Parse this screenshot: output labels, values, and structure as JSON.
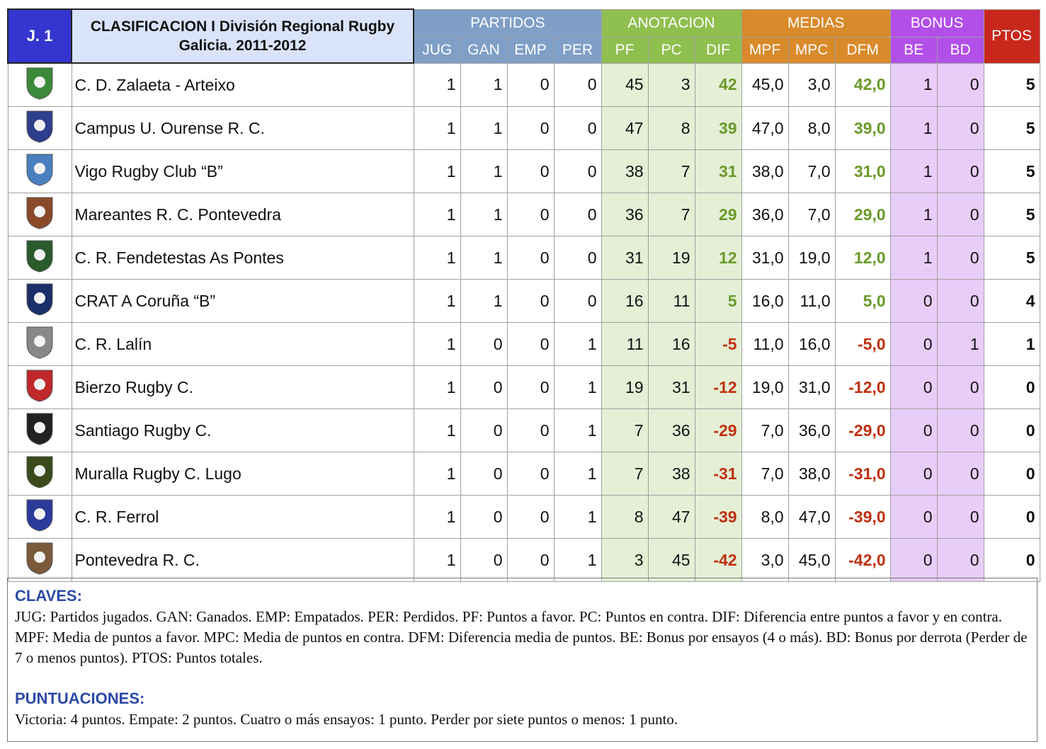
{
  "header": {
    "round": "J. 1",
    "title": "CLASIFICACION I División Regional Rugby Galicia. 2011-2012"
  },
  "groups": [
    {
      "label": "PARTIDOS",
      "color": "#7f9fc7",
      "cell_color": "#ffffff",
      "columns": [
        "JUG",
        "GAN",
        "EMP",
        "PER"
      ]
    },
    {
      "label": "ANOTACION",
      "color": "#8fbf4f",
      "cell_color": "#e4efd6",
      "columns": [
        "PF",
        "PC",
        "DIF"
      ]
    },
    {
      "label": "MEDIAS",
      "color": "#d98a2a",
      "cell_color": "#ffffff",
      "columns": [
        "MPF",
        "MPC",
        "DFM"
      ]
    },
    {
      "label": "BONUS",
      "color": "#b24fe8",
      "cell_color": "#e9cdf9",
      "columns": [
        "BE",
        "BD"
      ]
    }
  ],
  "ptos": "PTOS",
  "rows": [
    {
      "team": "C. D. Zalaeta - Arteixo",
      "cells": [
        "1",
        "1",
        "0",
        "0",
        "45",
        "3",
        "42",
        "45,0",
        "3,0",
        "42,0",
        "1",
        "0",
        "5"
      ]
    },
    {
      "team": "Campus U. Ourense R. C.",
      "cells": [
        "1",
        "1",
        "0",
        "0",
        "47",
        "8",
        "39",
        "47,0",
        "8,0",
        "39,0",
        "1",
        "0",
        "5"
      ]
    },
    {
      "team": "Vigo Rugby Club “B”",
      "cells": [
        "1",
        "1",
        "0",
        "0",
        "38",
        "7",
        "31",
        "38,0",
        "7,0",
        "31,0",
        "1",
        "0",
        "5"
      ]
    },
    {
      "team": "Mareantes R. C. Pontevedra",
      "cells": [
        "1",
        "1",
        "0",
        "0",
        "36",
        "7",
        "29",
        "36,0",
        "7,0",
        "29,0",
        "1",
        "0",
        "5"
      ]
    },
    {
      "team": "C. R. Fendetestas As Pontes",
      "cells": [
        "1",
        "1",
        "0",
        "0",
        "31",
        "19",
        "12",
        "31,0",
        "19,0",
        "12,0",
        "1",
        "0",
        "5"
      ]
    },
    {
      "team": "CRAT A Coruña “B”",
      "cells": [
        "1",
        "1",
        "0",
        "0",
        "16",
        "11",
        "5",
        "16,0",
        "11,0",
        "5,0",
        "0",
        "0",
        "4"
      ]
    },
    {
      "team": "C. R. Lalín",
      "cells": [
        "1",
        "0",
        "0",
        "1",
        "11",
        "16",
        "-5",
        "11,0",
        "16,0",
        "-5,0",
        "0",
        "1",
        "1"
      ]
    },
    {
      "team": "Bierzo Rugby C.",
      "cells": [
        "1",
        "0",
        "0",
        "1",
        "19",
        "31",
        "-12",
        "19,0",
        "31,0",
        "-12,0",
        "0",
        "0",
        "0"
      ]
    },
    {
      "team": "Santiago Rugby C.",
      "cells": [
        "1",
        "0",
        "0",
        "1",
        "7",
        "36",
        "-29",
        "7,0",
        "36,0",
        "-29,0",
        "0",
        "0",
        "0"
      ]
    },
    {
      "team": "Muralla Rugby C. Lugo",
      "cells": [
        "1",
        "0",
        "0",
        "1",
        "7",
        "38",
        "-31",
        "7,0",
        "38,0",
        "-31,0",
        "0",
        "0",
        "0"
      ]
    },
    {
      "team": "C. R. Ferrol",
      "cells": [
        "1",
        "0",
        "0",
        "1",
        "8",
        "47",
        "-39",
        "8,0",
        "47,0",
        "-39,0",
        "0",
        "0",
        "0"
      ]
    },
    {
      "team": "Pontevedra R. C.",
      "cells": [
        "1",
        "0",
        "0",
        "1",
        "3",
        "45",
        "-42",
        "3,0",
        "45,0",
        "-42,0",
        "0",
        "0",
        "0"
      ]
    }
  ],
  "legend": {
    "claves_title": "CLAVES:",
    "claves_text": "JUG: Partidos jugados. GAN: Ganados. EMP: Empatados. PER: Perdidos. PF: Puntos a favor. PC: Puntos en contra. DIF: Diferencia entre puntos a favor y en contra. MPF: Media de puntos a favor. MPC: Media de puntos en contra. DFM: Diferencia media de puntos. BE: Bonus por ensayos (4 o más). BD: Bonus por derrota (Perder de 7 o menos puntos). PTOS: Puntos totales.",
    "puntuaciones_title": "PUNTUACIONES:",
    "puntuaciones_text": "Victoria: 4 puntos. Empate: 2 puntos. Cuatro o más ensayos: 1 punto. Perder por siete puntos o menos: 1 punto."
  }
}
